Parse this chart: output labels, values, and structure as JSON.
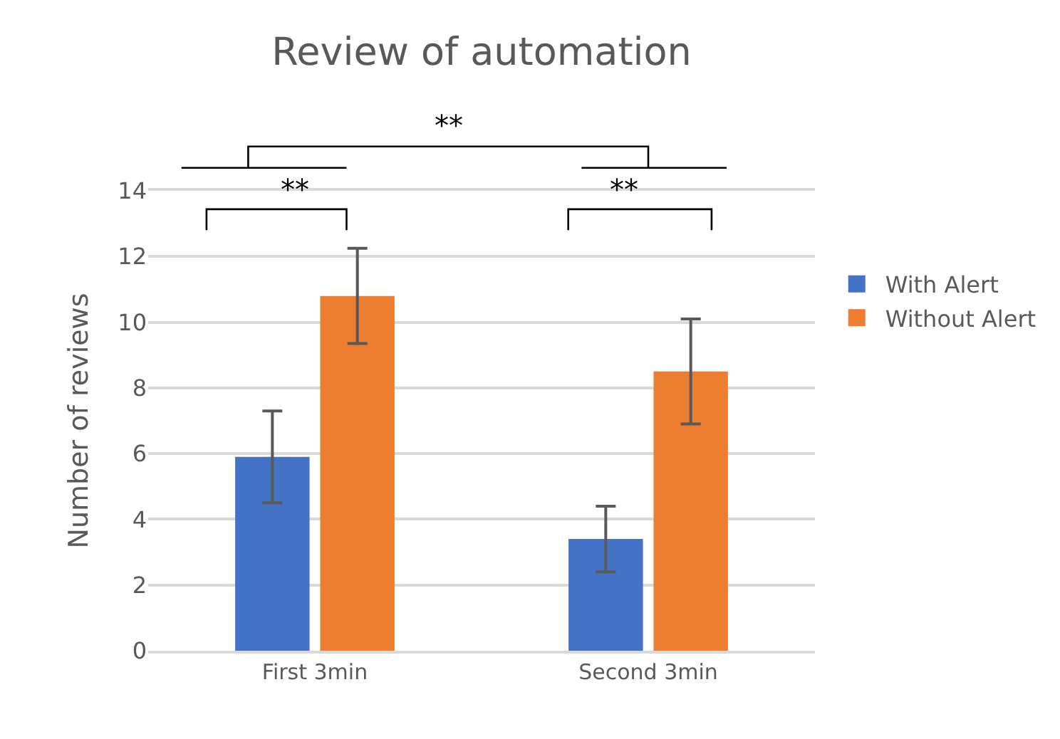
{
  "chart_data": {
    "type": "bar",
    "title": "Review of automation",
    "ylabel": "Number of reviews",
    "categories": [
      "First 3min",
      "Second 3min"
    ],
    "series": [
      {
        "name": "With Alert",
        "color": "#4472c4",
        "values": [
          5.9,
          3.4
        ],
        "errors": [
          1.4,
          1.0
        ]
      },
      {
        "name": "Without Alert",
        "color": "#ed7d31",
        "values": [
          10.8,
          8.5
        ],
        "errors": [
          1.45,
          1.6
        ]
      }
    ],
    "ylim": [
      0,
      14
    ],
    "yticks": [
      0,
      2,
      4,
      6,
      8,
      10,
      12,
      14
    ],
    "grid": "y",
    "legend": "right",
    "annotations": [
      "**",
      "**",
      "**"
    ]
  }
}
